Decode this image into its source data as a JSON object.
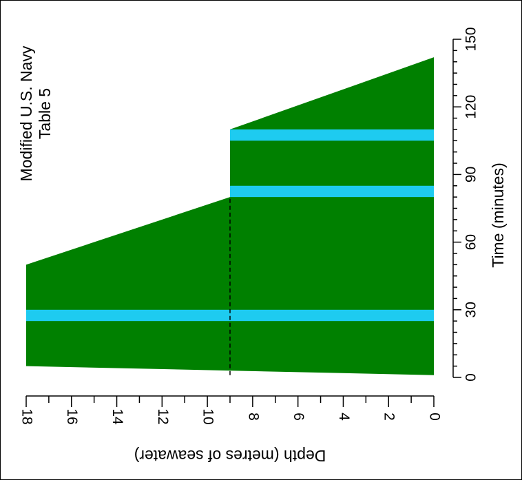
{
  "chart_data": {
    "type": "profile",
    "title": [
      "Modified U.S. Navy",
      "Table 5"
    ],
    "x_label": "Depth (metres of seawater)",
    "y_label": "Time (minutes)",
    "xlim": [
      0,
      18
    ],
    "x_reversed": true,
    "xticks": [
      0,
      2,
      4,
      6,
      8,
      10,
      12,
      14,
      16,
      18
    ],
    "xminor_ticks": [
      1,
      3,
      5,
      7,
      9,
      11,
      13,
      15,
      17
    ],
    "ylim": [
      0,
      150
    ],
    "yticks": [
      0,
      30,
      60,
      90,
      120,
      150
    ],
    "yminor_ticks": [
      5,
      10,
      15,
      20,
      25,
      35,
      40,
      45,
      50,
      55,
      65,
      70,
      75,
      80,
      85,
      95,
      100,
      105,
      110,
      115,
      125,
      130,
      135,
      140,
      145
    ],
    "profile": {
      "color": "#008000",
      "depth": [
        18,
        18,
        9,
        9,
        0,
        0
      ],
      "time": [
        5,
        50,
        80,
        110,
        142,
        1
      ]
    },
    "air_breaks": {
      "color": "#1ecbf0",
      "items": [
        {
          "from_depth": 18,
          "to_depth": 0,
          "start": 25,
          "end": 30
        },
        {
          "from_depth": 9,
          "to_depth": 0,
          "start": 80,
          "end": 85
        },
        {
          "from_depth": 9,
          "to_depth": 0,
          "start": 105,
          "end": 110
        }
      ]
    },
    "dashed_line": {
      "depth": 9,
      "start": 1,
      "end": 80
    }
  }
}
